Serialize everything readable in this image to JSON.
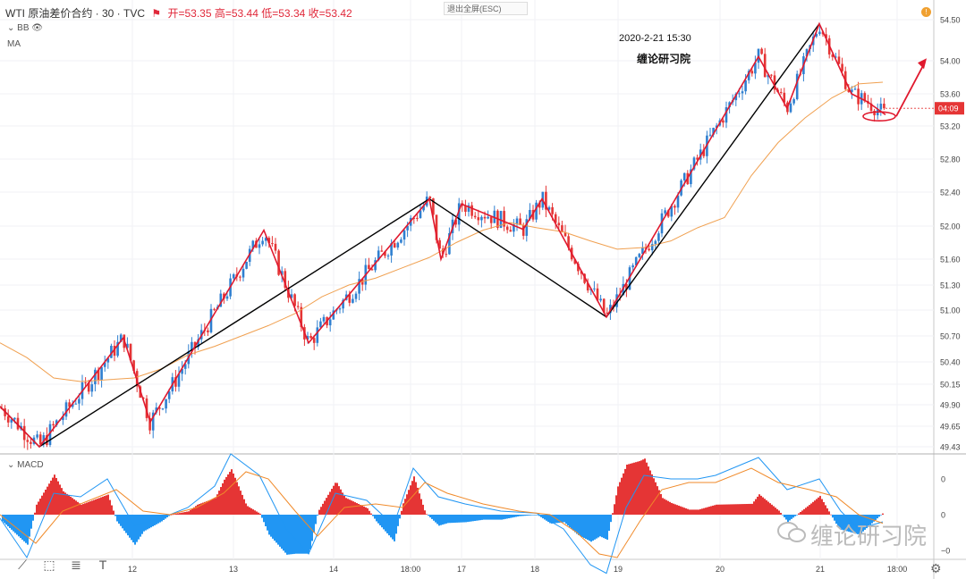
{
  "header": {
    "symbol": "WTI 原油差价合约 · 30 · TVC",
    "open_label": "开=53.35",
    "high_label": "高=53.44",
    "low_label": "低=53.34",
    "close_label": "收=53.42"
  },
  "indicators": {
    "bb": "BB",
    "ma": "MA",
    "macd": "MACD"
  },
  "exit_button": "退出全屏(ESC)",
  "annotations": {
    "date": "2020-2-21  15:30",
    "author": "缠论研习院"
  },
  "watermark": "缠论研习院",
  "price_tag": "04:09",
  "colors": {
    "up": "#2f7fd0",
    "down": "#e53535",
    "zigzag": "#e0192e",
    "trend": "#000000",
    "ma": "#f0a050"
  },
  "chart_data": {
    "type": "candlestick",
    "price_ticks": [
      "54.50",
      "54.00",
      "53.60",
      "53.20",
      "52.80",
      "52.40",
      "52.00",
      "51.60",
      "51.30",
      "51.00",
      "50.70",
      "50.40",
      "50.15",
      "49.90",
      "49.65",
      "49.43"
    ],
    "price_tick_values": [
      54.5,
      54.0,
      53.6,
      53.2,
      52.8,
      52.4,
      52.0,
      51.6,
      51.3,
      51.0,
      50.7,
      50.4,
      50.15,
      49.9,
      49.65,
      49.43
    ],
    "x_ticks": [
      {
        "label": "12",
        "t": 148
      },
      {
        "label": "13",
        "t": 261
      },
      {
        "label": "14",
        "t": 373
      },
      {
        "label": "18:00",
        "t": 459
      },
      {
        "label": "17",
        "t": 516
      },
      {
        "label": "18",
        "t": 598
      },
      {
        "label": "19",
        "t": 691
      },
      {
        "label": "20",
        "t": 805
      },
      {
        "label": "21",
        "t": 917
      },
      {
        "label": "18:00",
        "t": 1003
      }
    ],
    "macd_ticks": [
      "0",
      "0",
      "−0"
    ],
    "macd_tick_values": [
      0.5,
      0,
      -0.5
    ],
    "red_zigzag": [
      [
        0,
        49.88
      ],
      [
        44,
        49.43
      ],
      [
        138,
        50.68
      ],
      [
        168,
        49.7
      ],
      [
        295,
        51.95
      ],
      [
        345,
        50.62
      ],
      [
        480,
        52.32
      ],
      [
        493,
        51.6
      ],
      [
        516,
        52.26
      ],
      [
        585,
        51.96
      ],
      [
        606,
        52.32
      ],
      [
        678,
        50.92
      ],
      [
        848,
        54.05
      ],
      [
        880,
        53.42
      ],
      [
        916,
        54.45
      ],
      [
        952,
        53.6
      ],
      [
        970,
        53.5
      ],
      [
        990,
        53.34
      ]
    ],
    "black_trend": [
      [
        0,
        49.88
      ],
      [
        44,
        49.43
      ],
      [
        480,
        52.32
      ],
      [
        678,
        50.92
      ],
      [
        916,
        54.45
      ]
    ],
    "ma_line": [
      [
        0,
        50.62
      ],
      [
        30,
        50.45
      ],
      [
        60,
        50.22
      ],
      [
        90,
        50.18
      ],
      [
        120,
        50.2
      ],
      [
        150,
        50.22
      ],
      [
        180,
        50.32
      ],
      [
        210,
        50.48
      ],
      [
        240,
        50.58
      ],
      [
        270,
        50.7
      ],
      [
        300,
        50.82
      ],
      [
        330,
        50.96
      ],
      [
        360,
        51.16
      ],
      [
        390,
        51.3
      ],
      [
        420,
        51.38
      ],
      [
        450,
        51.5
      ],
      [
        480,
        51.62
      ],
      [
        510,
        51.8
      ],
      [
        540,
        51.95
      ],
      [
        570,
        52.04
      ],
      [
        600,
        51.98
      ],
      [
        630,
        51.93
      ],
      [
        660,
        51.82
      ],
      [
        690,
        51.72
      ],
      [
        720,
        51.74
      ],
      [
        750,
        51.82
      ],
      [
        780,
        51.98
      ],
      [
        810,
        52.1
      ],
      [
        840,
        52.6
      ],
      [
        870,
        53.0
      ],
      [
        900,
        53.3
      ],
      [
        930,
        53.55
      ],
      [
        960,
        53.72
      ],
      [
        987,
        53.74
      ]
    ],
    "macd_dif": [
      [
        0,
        -0.05
      ],
      [
        30,
        -0.6
      ],
      [
        60,
        0.3
      ],
      [
        90,
        0.25
      ],
      [
        120,
        0.5
      ],
      [
        150,
        -0.15
      ],
      [
        180,
        -0.05
      ],
      [
        210,
        0.1
      ],
      [
        240,
        0.4
      ],
      [
        258,
        0.85
      ],
      [
        290,
        0.55
      ],
      [
        320,
        -0.2
      ],
      [
        345,
        -0.55
      ],
      [
        375,
        0.3
      ],
      [
        410,
        0.2
      ],
      [
        440,
        -0.15
      ],
      [
        462,
        0.65
      ],
      [
        490,
        0.25
      ],
      [
        520,
        0.15
      ],
      [
        560,
        0.05
      ],
      [
        600,
        0.02
      ],
      [
        630,
        -0.2
      ],
      [
        660,
        -0.7
      ],
      [
        678,
        -0.82
      ],
      [
        700,
        0.1
      ],
      [
        720,
        0.55
      ],
      [
        750,
        0.5
      ],
      [
        780,
        0.5
      ],
      [
        800,
        0.55
      ],
      [
        848,
        0.8
      ],
      [
        880,
        0.35
      ],
      [
        916,
        0.5
      ],
      [
        940,
        0.05
      ],
      [
        960,
        -0.2
      ],
      [
        987,
        -0.1
      ]
    ],
    "macd_dea": [
      [
        0,
        0
      ],
      [
        40,
        -0.4
      ],
      [
        70,
        0.05
      ],
      [
        100,
        0.2
      ],
      [
        130,
        0.35
      ],
      [
        160,
        0.05
      ],
      [
        190,
        0.0
      ],
      [
        220,
        0.1
      ],
      [
        250,
        0.3
      ],
      [
        275,
        0.6
      ],
      [
        300,
        0.5
      ],
      [
        330,
        0.05
      ],
      [
        355,
        -0.3
      ],
      [
        385,
        0.1
      ],
      [
        420,
        0.15
      ],
      [
        450,
        0.1
      ],
      [
        475,
        0.45
      ],
      [
        500,
        0.3
      ],
      [
        540,
        0.15
      ],
      [
        580,
        0.05
      ],
      [
        615,
        0.0
      ],
      [
        645,
        -0.25
      ],
      [
        670,
        -0.55
      ],
      [
        690,
        -0.6
      ],
      [
        715,
        -0.1
      ],
      [
        740,
        0.35
      ],
      [
        770,
        0.45
      ],
      [
        800,
        0.45
      ],
      [
        840,
        0.65
      ],
      [
        870,
        0.45
      ],
      [
        905,
        0.35
      ],
      [
        935,
        0.25
      ],
      [
        960,
        0.0
      ],
      [
        987,
        -0.12
      ]
    ]
  }
}
